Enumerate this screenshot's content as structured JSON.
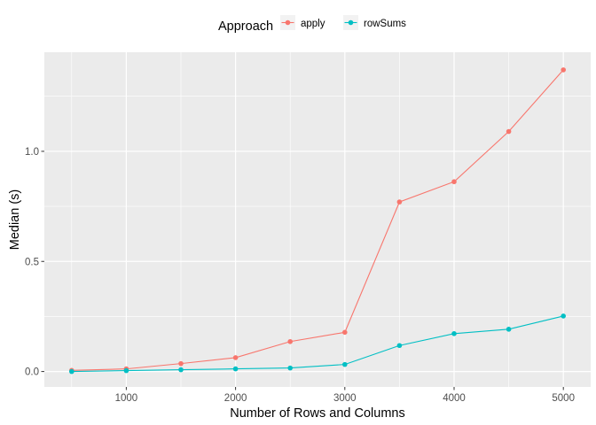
{
  "chart_data": {
    "type": "line",
    "title": "",
    "xlabel": "Number of Rows and Columns",
    "ylabel": "Median (s)",
    "x": [
      500,
      1000,
      1500,
      2000,
      2500,
      3000,
      3500,
      4000,
      4500,
      5000
    ],
    "xlim": [
      250,
      5250
    ],
    "ylim": [
      -0.07,
      1.45
    ],
    "x_ticks": [
      1000,
      2000,
      3000,
      4000,
      5000
    ],
    "x_tick_labels": [
      "1000",
      "2000",
      "3000",
      "4000",
      "5000"
    ],
    "y_ticks": [
      0.0,
      0.5,
      1.0
    ],
    "y_tick_labels": [
      "0.0",
      "0.5",
      "1.0"
    ],
    "grid": true,
    "legend": {
      "title": "Approach",
      "position": "top"
    },
    "series": [
      {
        "name": "apply",
        "color": "#f8766d",
        "values": [
          0.005,
          0.012,
          0.036,
          0.063,
          0.136,
          0.178,
          0.77,
          0.862,
          1.09,
          1.37
        ]
      },
      {
        "name": "rowSums",
        "color": "#00bfc4",
        "values": [
          0.0,
          0.004,
          0.008,
          0.012,
          0.016,
          0.032,
          0.118,
          0.172,
          0.192,
          0.252
        ]
      }
    ]
  }
}
